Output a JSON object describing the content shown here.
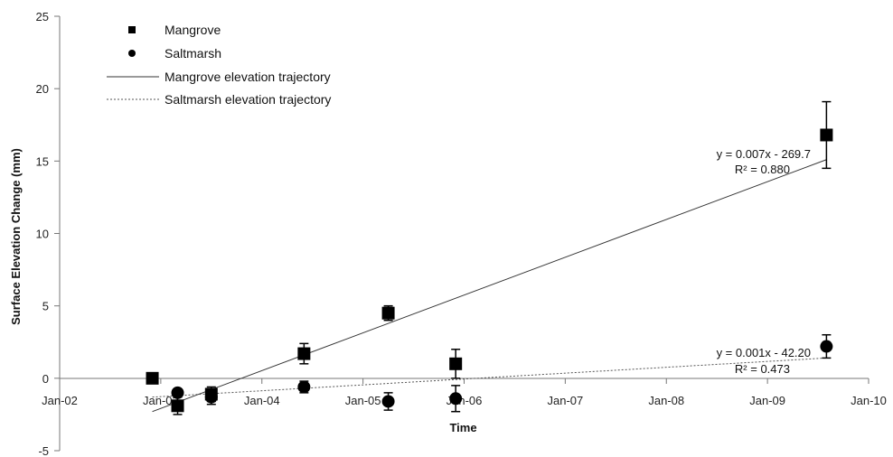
{
  "chart_data": {
    "type": "scatter",
    "title": "",
    "xlabel": "Time",
    "ylabel": "Surface Elevation Change (mm)",
    "x_ticks": [
      "Jan-02",
      "Jan-03",
      "Jan-04",
      "Jan-05",
      "Jan-06",
      "Jan-07",
      "Jan-08",
      "Jan-09",
      "Jan-10"
    ],
    "ylim": [
      -5,
      25
    ],
    "y_ticks": [
      "-5",
      "0",
      "5",
      "10",
      "15",
      "20",
      "25"
    ],
    "grid": false,
    "legend_position": "top-left",
    "series": [
      {
        "name": "Mangrove",
        "marker": "square",
        "points": [
          {
            "x": "Dec-02",
            "y": 0.0,
            "err": 0.0
          },
          {
            "x": "Mar-03",
            "y": -1.9,
            "err": 0.6
          },
          {
            "x": "Jul-03",
            "y": -1.1,
            "err": 0.5
          },
          {
            "x": "Jun-04",
            "y": 1.7,
            "err": 0.7
          },
          {
            "x": "Apr-05",
            "y": 4.5,
            "err": 0.5
          },
          {
            "x": "Dec-05",
            "y": 1.0,
            "err": 1.0
          },
          {
            "x": "Aug-09",
            "y": 16.8,
            "err": 2.3
          }
        ]
      },
      {
        "name": "Saltmarsh",
        "marker": "circle",
        "points": [
          {
            "x": "Mar-03",
            "y": -1.0,
            "err": 0.0
          },
          {
            "x": "Jul-03",
            "y": -1.3,
            "err": 0.5
          },
          {
            "x": "Jun-04",
            "y": -0.6,
            "err": 0.4
          },
          {
            "x": "Apr-05",
            "y": -1.6,
            "err": 0.6
          },
          {
            "x": "Dec-05",
            "y": -1.4,
            "err": 0.9
          },
          {
            "x": "Aug-09",
            "y": 2.2,
            "err": 0.8
          }
        ]
      }
    ],
    "trendlines": [
      {
        "name": "Mangrove elevation trajectory",
        "style": "solid",
        "from": {
          "x": "Dec-02",
          "y": -2.3
        },
        "to": {
          "x": "Aug-09",
          "y": 15.1
        },
        "equation": "y = 0.007x - 269.7",
        "r2": "R² = 0.880"
      },
      {
        "name": "Saltmarsh elevation trajectory",
        "style": "dotted",
        "from": {
          "x": "Dec-02",
          "y": -1.3
        },
        "to": {
          "x": "Aug-09",
          "y": 1.4
        },
        "equation": "y = 0.001x - 42.20",
        "r2": "R² = 0.473"
      }
    ],
    "colors": {
      "marker": "#000000",
      "axis": "#777777",
      "trend_solid": "#333333",
      "trend_dotted": "#555555"
    }
  }
}
